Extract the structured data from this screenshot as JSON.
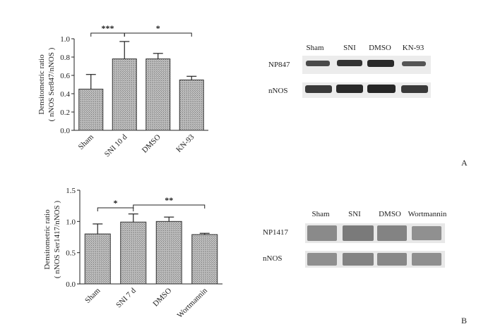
{
  "chart_data": [
    {
      "id": "A",
      "type": "bar",
      "categories": [
        "Sham",
        "SNI 10 d",
        "DMSO",
        "KN-93"
      ],
      "values": [
        0.45,
        0.78,
        0.78,
        0.55
      ],
      "errors": [
        0.16,
        0.19,
        0.06,
        0.04
      ],
      "ylabel_line1": "Densitometric ratio",
      "ylabel_line2": "( nNOS Ser847/nNOS )",
      "ylim": [
        0,
        1.0
      ],
      "yticks": [
        "0.0",
        "0.2",
        "0.4",
        "0.6",
        "0.8",
        "1.0"
      ],
      "significance": [
        {
          "from": 0,
          "to": 1,
          "label": "***"
        },
        {
          "from": 1,
          "to": 3,
          "label": "*"
        }
      ]
    },
    {
      "id": "B",
      "type": "bar",
      "categories": [
        "Sham",
        "SNI 7 d",
        "DMSO",
        "Wortmannin"
      ],
      "values": [
        0.8,
        0.99,
        1.0,
        0.79
      ],
      "errors": [
        0.16,
        0.13,
        0.07,
        0.02
      ],
      "ylabel_line1": "Densitometric ratio",
      "ylabel_line2": "( nNOS Ser1417/nNOS )",
      "ylim": [
        0,
        1.5
      ],
      "yticks": [
        "0.0",
        "0.5",
        "1.0",
        "1.5"
      ],
      "significance": [
        {
          "from": 0,
          "to": 1,
          "label": "*"
        },
        {
          "from": 1,
          "to": 3,
          "label": "**"
        }
      ]
    }
  ],
  "blot_A": {
    "lanes": [
      "Sham",
      "SNI",
      "DMSO",
      "KN-93"
    ],
    "rows": [
      "NP847",
      "nNOS"
    ],
    "panel_label": "A"
  },
  "blot_B": {
    "lanes": [
      "Sham",
      "SNI",
      "DMSO",
      "Wortmannin"
    ],
    "rows": [
      "NP1417",
      "nNOS"
    ],
    "panel_label": "B"
  },
  "colors": {
    "bar_fill": "#c8c8c8",
    "bar_stroke": "#333333",
    "band": "#2a2a2a"
  }
}
